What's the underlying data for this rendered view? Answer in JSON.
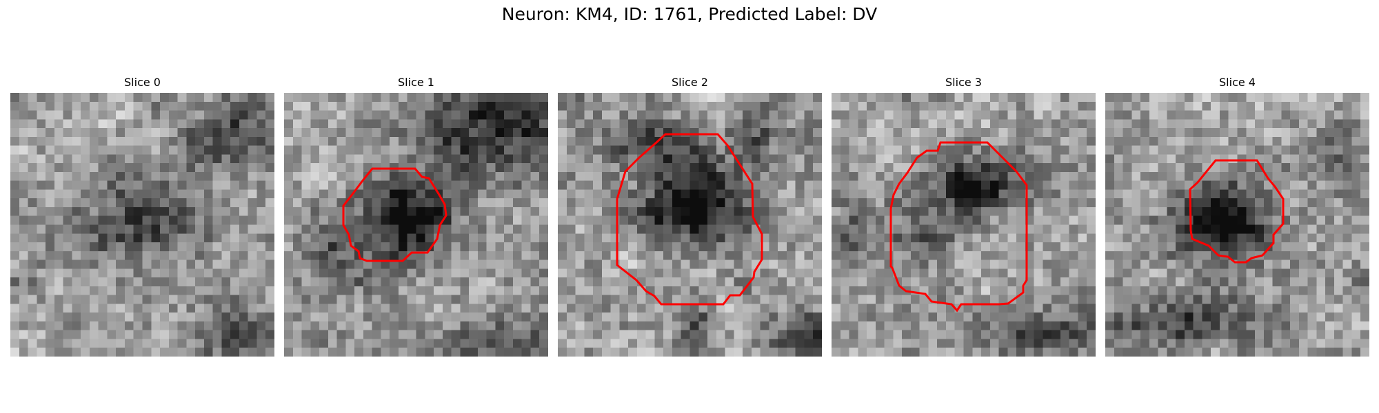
{
  "figure": {
    "suptitle": "Neuron: KM4, ID: 1761, Predicted Label: DV",
    "contour_color": "#ff0000",
    "panels": [
      {
        "title": "Slice 0",
        "has_contour": false
      },
      {
        "title": "Slice 1",
        "has_contour": true
      },
      {
        "title": "Slice 2",
        "has_contour": true
      },
      {
        "title": "Slice 3",
        "has_contour": true
      },
      {
        "title": "Slice 4",
        "has_contour": true
      }
    ]
  }
}
